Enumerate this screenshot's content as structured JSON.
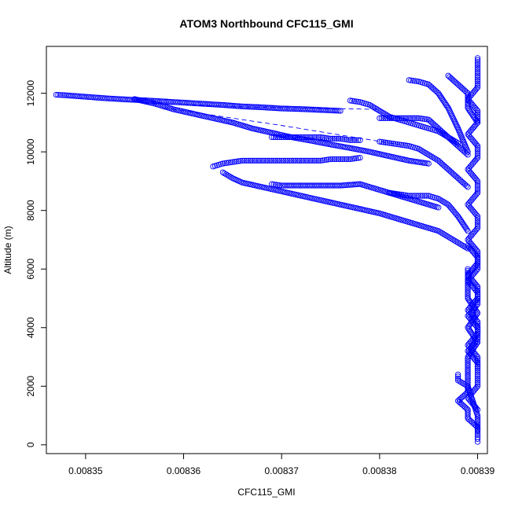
{
  "chart_data": {
    "type": "scatter",
    "title": "ATOM3 Northbound CFC115_GMI",
    "xlabel": "CFC115_GMI",
    "ylabel": "Altitude (m)",
    "xlim": [
      0.008346,
      0.008391
    ],
    "ylim": [
      -300,
      13600
    ],
    "xticks": [
      0.00835,
      0.00836,
      0.00837,
      0.00838,
      0.00839
    ],
    "xtick_labels": [
      "0.00835",
      "0.00836",
      "0.00837",
      "0.00838",
      "0.00839"
    ],
    "yticks": [
      0,
      2000,
      4000,
      6000,
      8000,
      10000,
      12000
    ],
    "ytick_labels": [
      "0",
      "2000",
      "4000",
      "6000",
      "8000",
      "10000",
      "12000"
    ],
    "series_color": "#0000ff",
    "marker": "open-circle",
    "series": [
      {
        "x": [
          0.008347,
          0.008348,
          0.00835,
          0.008352,
          0.008354,
          0.008356,
          0.008358,
          0.00836,
          0.008362,
          0.008364,
          0.008366,
          0.008368,
          0.00837,
          0.008372,
          0.008374,
          0.008376
        ],
        "y": [
          11950,
          11930,
          11880,
          11830,
          11790,
          11760,
          11720,
          11680,
          11640,
          11600,
          11550,
          11520,
          11480,
          11460,
          11430,
          11400
        ]
      },
      {
        "x": [
          0.008355,
          0.008357,
          0.008359,
          0.008361,
          0.008363,
          0.008365,
          0.008367,
          0.008369,
          0.008371,
          0.008373,
          0.008375,
          0.008377,
          0.008379,
          0.008381,
          0.008383,
          0.008385
        ],
        "y": [
          11800,
          11650,
          11450,
          11300,
          11150,
          11000,
          10800,
          10650,
          10500,
          10380,
          10250,
          10130,
          10000,
          9850,
          9700,
          9600
        ]
      },
      {
        "x": [
          0.008363,
          0.008364,
          0.008365,
          0.008366,
          0.008367,
          0.008368,
          0.008369,
          0.00837,
          0.008371,
          0.008372,
          0.008373,
          0.008374,
          0.008375,
          0.008376,
          0.008377,
          0.008378
        ],
        "y": [
          9500,
          9600,
          9650,
          9700,
          9700,
          9700,
          9700,
          9700,
          9700,
          9700,
          9700,
          9700,
          9750,
          9750,
          9750,
          9800
        ]
      },
      {
        "x": [
          0.008364,
          0.008365,
          0.008366,
          0.008368,
          0.00837,
          0.008372,
          0.008374,
          0.008376,
          0.008378,
          0.00838,
          0.008382,
          0.008384,
          0.008386,
          0.008387,
          0.008388,
          0.008389
        ],
        "y": [
          9300,
          9100,
          8950,
          8800,
          8650,
          8500,
          8350,
          8200,
          8050,
          7900,
          7700,
          7500,
          7300,
          7100,
          6900,
          6700
        ]
      },
      {
        "x": [
          0.008369,
          0.00837,
          0.008371,
          0.008372,
          0.008373,
          0.008374,
          0.008375,
          0.008376,
          0.008377,
          0.008378
        ],
        "y": [
          10500,
          10500,
          10500,
          10500,
          10500,
          10500,
          10450,
          10450,
          10400,
          10400
        ]
      },
      {
        "x": [
          0.008369,
          0.00837,
          0.008372,
          0.008374,
          0.008376,
          0.008378,
          0.00838,
          0.008382,
          0.008384,
          0.008386
        ],
        "y": [
          8900,
          8850,
          8850,
          8850,
          8850,
          8900,
          8700,
          8500,
          8300,
          8100
        ]
      },
      {
        "x": [
          0.008377,
          0.008378,
          0.008379,
          0.00838,
          0.008381,
          0.008382,
          0.008383,
          0.008384,
          0.008385,
          0.008386,
          0.008387,
          0.008388
        ],
        "y": [
          11750,
          11700,
          11600,
          11400,
          11200,
          11100,
          11000,
          10900,
          10800,
          10700,
          10500,
          10300
        ]
      },
      {
        "x": [
          0.00838,
          0.008381,
          0.008382,
          0.008383,
          0.008384,
          0.008385,
          0.008386,
          0.008387,
          0.008388,
          0.008389
        ],
        "y": [
          11150,
          11150,
          11150,
          11150,
          11150,
          11100,
          10800,
          10500,
          10200,
          9900
        ]
      },
      {
        "x": [
          0.00838,
          0.008381,
          0.008382,
          0.008383,
          0.008384,
          0.008385,
          0.008386,
          0.008387,
          0.008388,
          0.008389
        ],
        "y": [
          10350,
          10300,
          10250,
          10200,
          10100,
          9900,
          9700,
          9400,
          9100,
          8800
        ]
      },
      {
        "x": [
          0.008381,
          0.008382,
          0.008383,
          0.008384,
          0.008385,
          0.008386,
          0.008387,
          0.008388,
          0.008389
        ],
        "y": [
          8600,
          8550,
          8500,
          8500,
          8500,
          8400,
          8200,
          7800,
          7300
        ]
      },
      {
        "x": [
          0.008383,
          0.008384,
          0.008385,
          0.008386,
          0.008387,
          0.008388,
          0.008389
        ],
        "y": [
          12450,
          12400,
          12300,
          12000,
          11500,
          10800,
          10000
        ]
      },
      {
        "x": [
          0.008387,
          0.008388,
          0.008389,
          0.008389,
          0.00839
        ],
        "y": [
          12600,
          12300,
          12000,
          11500,
          11000
        ]
      },
      {
        "x": [
          0.00839,
          0.00839,
          0.00839,
          0.00839,
          0.008389,
          0.00839,
          0.00839,
          0.008389,
          0.00839,
          0.00839,
          0.008389,
          0.00839,
          0.00839,
          0.008389,
          0.00839,
          0.00839,
          0.008389,
          0.00839,
          0.00839,
          0.008389,
          0.00839,
          0.00839,
          0.008389,
          0.00839,
          0.00839,
          0.008389,
          0.00839,
          0.00839
        ],
        "y": [
          13200,
          13000,
          12600,
          12200,
          11800,
          11400,
          11000,
          10600,
          10200,
          9800,
          9400,
          9000,
          8600,
          8200,
          7800,
          7400,
          7000,
          6600,
          6200,
          5800,
          5400,
          5000,
          4600,
          4200,
          3800,
          3400,
          3000,
          2600
        ]
      },
      {
        "x": [
          0.008389,
          0.00839,
          0.00839,
          0.008389,
          0.00839,
          0.00839,
          0.008389,
          0.00839,
          0.00839,
          0.008389,
          0.00839,
          0.00839,
          0.00839,
          0.008389,
          0.00839
        ],
        "y": [
          6800,
          6400,
          6000,
          5600,
          5200,
          4800,
          4400,
          4000,
          3600,
          3200,
          2800,
          2400,
          2000,
          1600,
          1200
        ]
      },
      {
        "x": [
          0.008388,
          0.008388,
          0.008389,
          0.008389,
          0.008388,
          0.008389,
          0.008389,
          0.00839,
          0.00839,
          0.00839,
          0.00839
        ],
        "y": [
          2400,
          2200,
          2000,
          1800,
          1500,
          1200,
          900,
          600,
          400,
          200,
          100
        ]
      },
      {
        "x": [
          0.008389,
          0.008389,
          0.00839,
          0.008389,
          0.00839,
          0.008389,
          0.008389,
          0.00839,
          0.00839
        ],
        "y": [
          6000,
          5000,
          4500,
          4000,
          3500,
          3000,
          2000,
          1000,
          500
        ]
      }
    ],
    "dashed_connectors": [
      {
        "x": [
          0.008356,
          0.008368,
          0.00838
        ],
        "y": [
          11650,
          11520,
          11450
        ]
      },
      {
        "x": [
          0.008358,
          0.00837,
          0.008382
        ],
        "y": [
          11500,
          10900,
          10250
        ]
      }
    ]
  }
}
